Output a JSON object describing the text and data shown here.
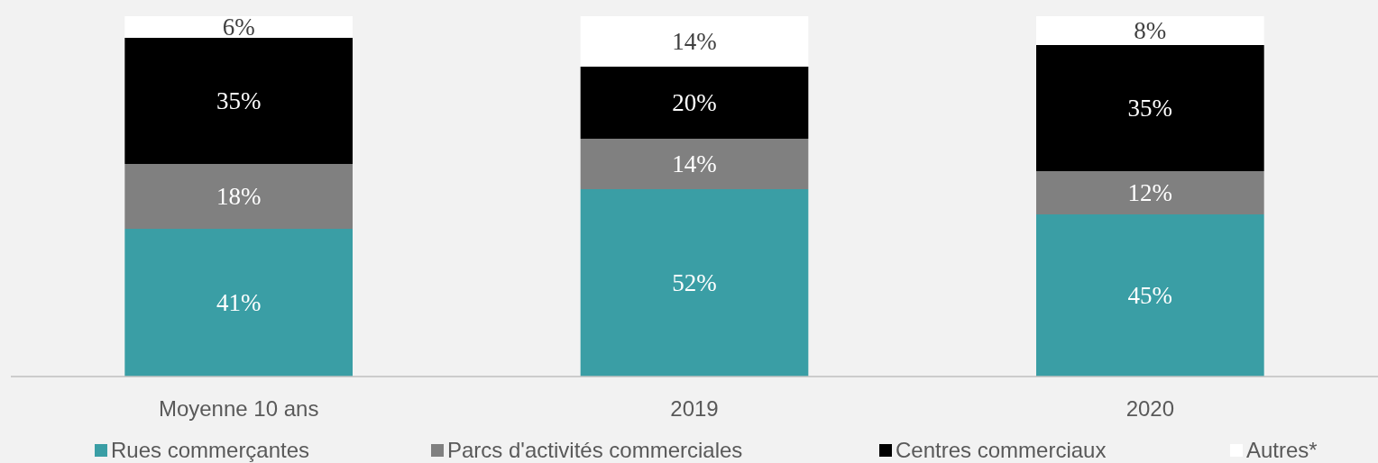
{
  "chart_data": {
    "type": "bar",
    "stacked": true,
    "categories": [
      "Moyenne 10 ans",
      "2019",
      "2020"
    ],
    "series": [
      {
        "name": "Rues commerçantes",
        "color": "#3a9ea5",
        "values": [
          41,
          52,
          45
        ],
        "value_labels": [
          "41%",
          "52%",
          "45%"
        ]
      },
      {
        "name": "Parcs d'activités commerciales",
        "color": "#808080",
        "values": [
          18,
          14,
          12
        ],
        "value_labels": [
          "18%",
          "14%",
          "12%"
        ]
      },
      {
        "name": "Centres commerciaux",
        "color": "#000000",
        "values": [
          35,
          20,
          35
        ],
        "value_labels": [
          "35%",
          "20%",
          "35%"
        ]
      },
      {
        "name": "Autres*",
        "color": "#ffffff",
        "values": [
          6,
          14,
          8
        ],
        "value_labels": [
          "6%",
          "14%",
          "8%"
        ]
      }
    ],
    "legend": "bottom"
  }
}
